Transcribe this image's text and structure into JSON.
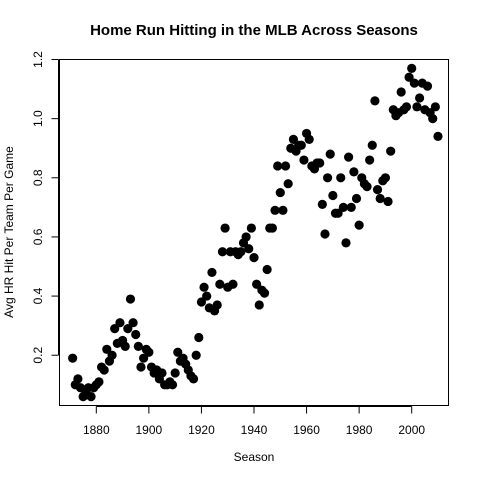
{
  "chart_data": {
    "type": "scatter",
    "title": "Home Run Hitting in the MLB Across Seasons",
    "xlabel": "Season",
    "ylabel": "Avg HR Hit Per Team Per Game",
    "xlim": [
      1866,
      2014
    ],
    "ylim": [
      0.03,
      1.2
    ],
    "xticks": [
      1880,
      1900,
      1920,
      1940,
      1960,
      1980,
      2000
    ],
    "yticks": [
      0.2,
      0.4,
      0.6,
      0.8,
      1.0,
      1.2
    ],
    "xtick_labels": [
      "1880",
      "1900",
      "1920",
      "1940",
      "1960",
      "1980",
      "2000"
    ],
    "ytick_labels": [
      "0.2",
      "0.4",
      "0.6",
      "0.8",
      "1.0",
      "1.2"
    ],
    "grid": false,
    "point_color": "#000000",
    "x": [
      1871,
      1872,
      1873,
      1874,
      1875,
      1876,
      1877,
      1878,
      1879,
      1880,
      1881,
      1882,
      1883,
      1884,
      1885,
      1886,
      1887,
      1888,
      1889,
      1890,
      1891,
      1892,
      1893,
      1894,
      1895,
      1896,
      1897,
      1898,
      1899,
      1900,
      1901,
      1902,
      1903,
      1904,
      1905,
      1906,
      1907,
      1908,
      1909,
      1910,
      1911,
      1912,
      1913,
      1914,
      1915,
      1916,
      1917,
      1918,
      1919,
      1920,
      1921,
      1922,
      1923,
      1924,
      1925,
      1926,
      1927,
      1928,
      1929,
      1930,
      1931,
      1932,
      1933,
      1934,
      1935,
      1936,
      1937,
      1938,
      1939,
      1940,
      1941,
      1942,
      1943,
      1944,
      1945,
      1946,
      1947,
      1948,
      1949,
      1950,
      1951,
      1952,
      1953,
      1954,
      1955,
      1956,
      1957,
      1958,
      1959,
      1960,
      1961,
      1962,
      1963,
      1964,
      1965,
      1966,
      1967,
      1968,
      1969,
      1970,
      1971,
      1972,
      1973,
      1974,
      1975,
      1976,
      1977,
      1978,
      1979,
      1980,
      1981,
      1982,
      1983,
      1984,
      1985,
      1986,
      1987,
      1988,
      1989,
      1990,
      1991,
      1992,
      1993,
      1994,
      1995,
      1996,
      1997,
      1998,
      1999,
      2000,
      2001,
      2002,
      2003,
      2004,
      2005,
      2006,
      2007,
      2008,
      2009,
      2010
    ],
    "y": [
      0.19,
      0.1,
      0.12,
      0.09,
      0.06,
      0.08,
      0.09,
      0.06,
      0.09,
      0.1,
      0.11,
      0.16,
      0.15,
      0.22,
      0.18,
      0.2,
      0.29,
      0.24,
      0.31,
      0.25,
      0.23,
      0.29,
      0.39,
      0.31,
      0.27,
      0.23,
      0.16,
      0.19,
      0.22,
      0.21,
      0.16,
      0.14,
      0.15,
      0.12,
      0.14,
      0.1,
      0.1,
      0.11,
      0.1,
      0.14,
      0.21,
      0.18,
      0.19,
      0.17,
      0.15,
      0.13,
      0.12,
      0.2,
      0.26,
      0.38,
      0.43,
      0.4,
      0.36,
      0.48,
      0.35,
      0.37,
      0.44,
      0.55,
      0.63,
      0.43,
      0.55,
      0.44,
      0.55,
      0.54,
      0.55,
      0.58,
      0.6,
      0.56,
      0.63,
      0.53,
      0.44,
      0.37,
      0.42,
      0.41,
      0.49,
      0.63,
      0.63,
      0.69,
      0.84,
      0.75,
      0.69,
      0.84,
      0.78,
      0.9,
      0.93,
      0.89,
      0.91,
      0.91,
      0.86,
      0.95,
      0.93,
      0.84,
      0.83,
      0.85,
      0.85,
      0.71,
      0.61,
      0.8,
      0.88,
      0.74,
      0.68,
      0.68,
      0.8,
      0.7,
      0.58,
      0.87,
      0.7,
      0.82,
      0.73,
      0.64,
      0.8,
      0.78,
      0.77,
      0.86,
      0.91,
      1.06,
      0.76,
      0.73,
      0.79,
      0.8,
      0.72,
      0.89,
      1.03,
      1.01,
      1.02,
      1.09,
      1.03,
      1.04,
      1.14,
      1.17,
      1.12,
      1.04,
      1.07,
      1.12,
      1.03,
      1.11,
      1.02,
      1.0,
      1.04,
      0.94
    ]
  }
}
